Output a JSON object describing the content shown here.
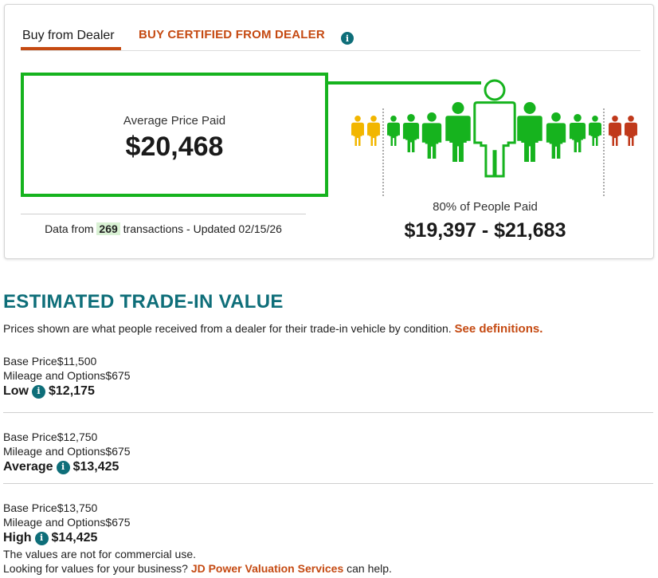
{
  "tabs": {
    "dealer": "Buy from Dealer",
    "certified": "BUY CERTIFIED FROM DEALER",
    "info_icon": "info-icon"
  },
  "average": {
    "label": "Average Price Paid",
    "value": "$20,468"
  },
  "meta": {
    "prefix": "Data from",
    "count": "269",
    "suffix": "transactions - Updated 02/15/26"
  },
  "distribution": {
    "label": "80% of People Paid",
    "range": "$19,397 - $21,683",
    "share_paid_in_range": 0.8,
    "colors": {
      "low": "#f2b600",
      "mid": "#16b31e",
      "high": "#c0391b",
      "accent": "#c54a12",
      "teal": "#0e6e79"
    }
  },
  "tradein": {
    "title": "ESTIMATED TRADE-IN VALUE",
    "desc": "Prices shown are what people received from a dealer for their trade-in vehicle by condition.",
    "desc_link": "See definitions.",
    "tiers": [
      {
        "base_label": "Base Price",
        "base_value": "$11,500",
        "mileage_label": "Mileage and Options",
        "mileage_value": "$675",
        "name": "Low",
        "total": "$12,175"
      },
      {
        "base_label": "Base Price",
        "base_value": "$12,750",
        "mileage_label": "Mileage and Options",
        "mileage_value": "$675",
        "name": "Average",
        "total": "$13,425"
      },
      {
        "base_label": "Base Price",
        "base_value": "$13,750",
        "mileage_label": "Mileage and Options",
        "mileage_value": "$675",
        "name": "High",
        "total": "$14,425"
      }
    ],
    "disclaimer": "The values are not for commercial use.",
    "business_prefix": "Looking for values for your business?",
    "business_link": "JD Power Valuation Services",
    "business_suffix": "can help."
  }
}
